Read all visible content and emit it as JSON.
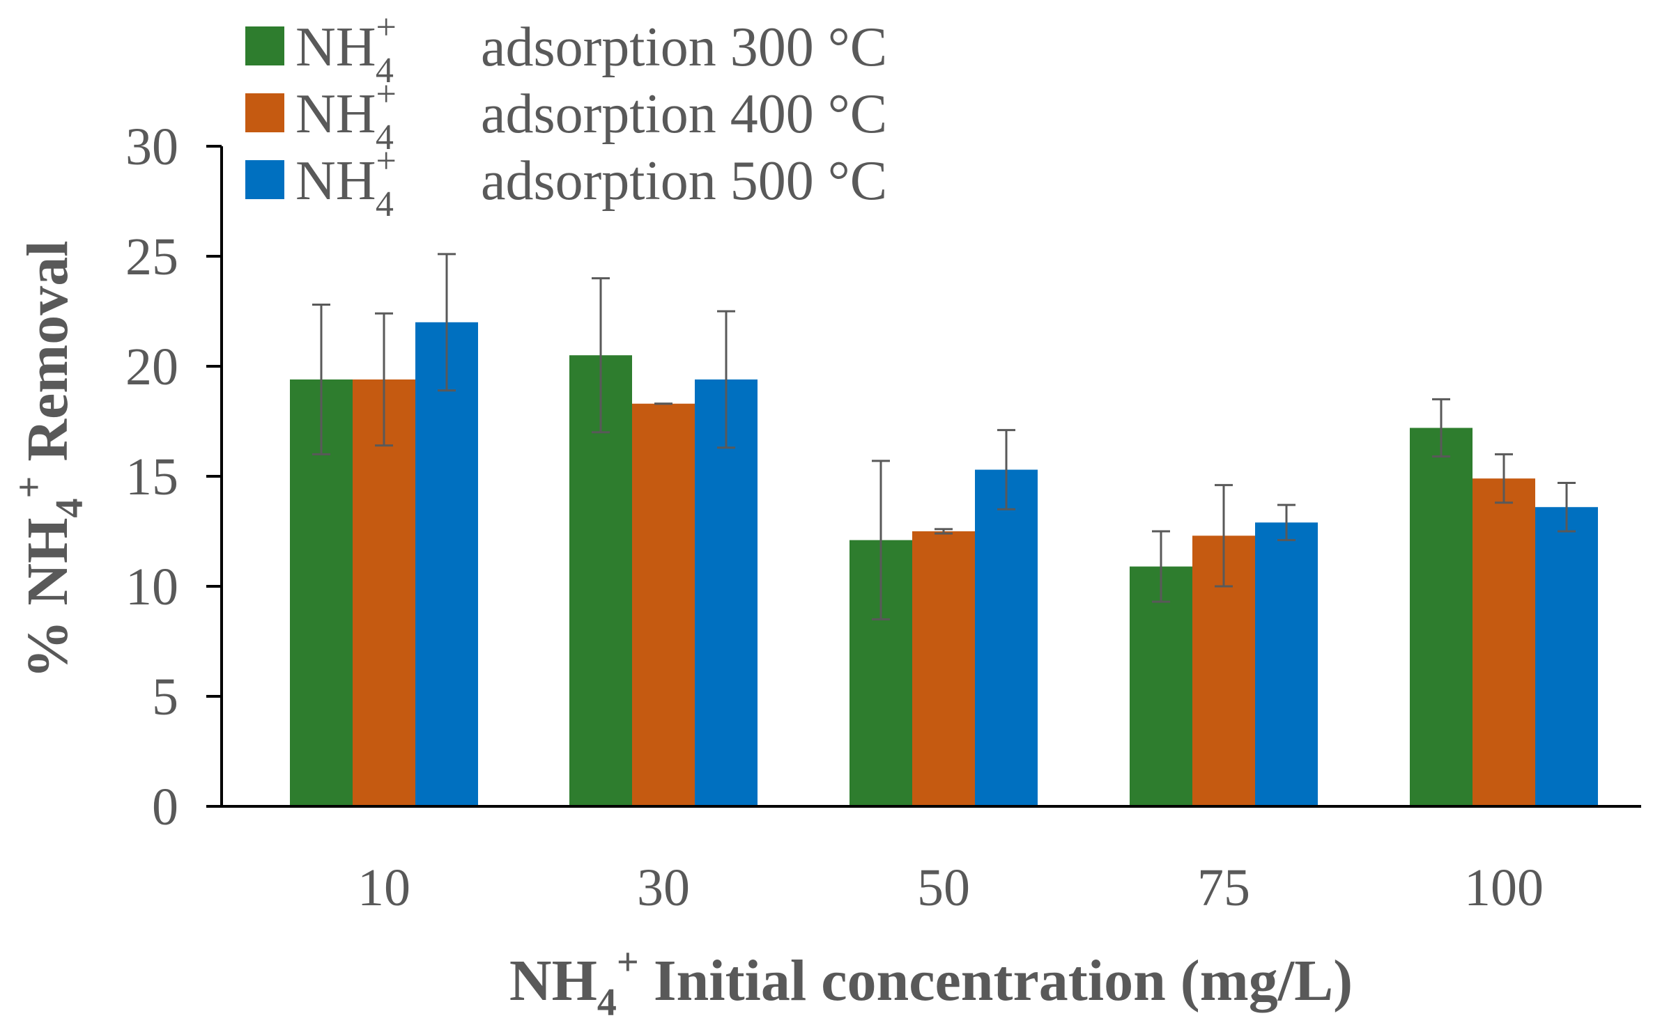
{
  "chart_data": {
    "type": "bar",
    "title": "",
    "xlabel": {
      "main": "NH",
      "sub": "4",
      "sup": "+",
      "rest": "  Initial concentration (mg/L)"
    },
    "ylabel": {
      "prefix": "% NH",
      "sub": "4",
      "sup": "+",
      "rest": " Removal"
    },
    "categories": [
      "10",
      "30",
      "50",
      "75",
      "100"
    ],
    "ylim": [
      0,
      30
    ],
    "yticks": [
      0,
      5,
      10,
      15,
      20,
      25,
      30
    ],
    "grid": false,
    "legend_position": "top-left",
    "series": [
      {
        "name": "NH4+ adsorption 300 °C",
        "label": {
          "main": "NH",
          "sub": "4",
          "sup": "+",
          "rest": "adsorption 300 °C"
        },
        "color": "#2e7d2e",
        "values": [
          19.4,
          20.5,
          12.1,
          10.9,
          17.2
        ],
        "errors": [
          3.4,
          3.5,
          3.6,
          1.6,
          1.3
        ]
      },
      {
        "name": "NH4+ adsorption 400 °C",
        "label": {
          "main": "NH",
          "sub": "4",
          "sup": "+",
          "rest": "adsorption 400 °C"
        },
        "color": "#c55a11",
        "values": [
          19.4,
          18.3,
          12.5,
          12.3,
          14.9
        ],
        "errors": [
          3.0,
          0.0,
          0.1,
          2.3,
          1.1
        ]
      },
      {
        "name": "NH4+ adsorption 500 °C",
        "label": {
          "main": "NH",
          "sub": "4",
          "sup": "+",
          "rest": "adsorption 500 °C"
        },
        "color": "#0070c0",
        "values": [
          22.0,
          19.4,
          15.3,
          12.9,
          13.6
        ],
        "errors": [
          3.1,
          3.1,
          1.8,
          0.8,
          1.1
        ]
      }
    ]
  }
}
